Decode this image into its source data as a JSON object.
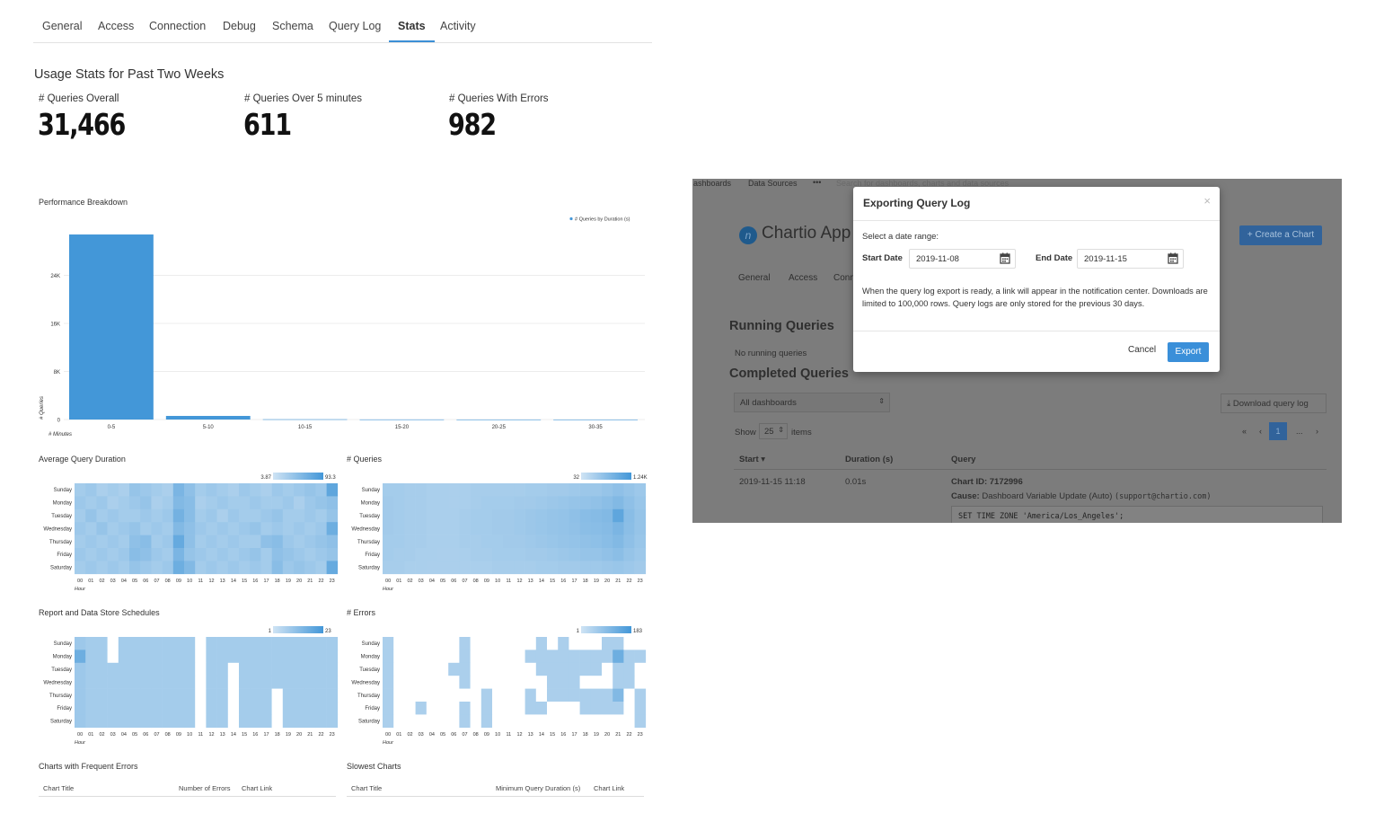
{
  "tabs": [
    {
      "label": "General"
    },
    {
      "label": "Access"
    },
    {
      "label": "Connection"
    },
    {
      "label": "Debug"
    },
    {
      "label": "Schema"
    },
    {
      "label": "Query Log"
    },
    {
      "label": "Stats",
      "active": true
    },
    {
      "label": "Activity"
    }
  ],
  "usage": {
    "title": "Usage Stats for Past Two Weeks",
    "stats": [
      {
        "label": "# Queries Overall",
        "value": "31,466"
      },
      {
        "label": "# Queries Over 5 minutes",
        "value": "611"
      },
      {
        "label": "# Queries With Errors",
        "value": "982"
      }
    ]
  },
  "chart_data": [
    {
      "type": "bar",
      "title": "Performance Breakdown",
      "xlabel": "# Minutes",
      "ylabel": "# Queries",
      "categories": [
        "0-5",
        "5-10",
        "10-15",
        "15-20",
        "20-25",
        "30-35"
      ],
      "series": [
        {
          "name": "# Queries by Duration (s)",
          "values": [
            30800,
            600,
            40,
            12,
            5,
            3
          ]
        }
      ],
      "y_ticks": [
        "0",
        "8K",
        "16K",
        "24K"
      ],
      "ylim": [
        0,
        32000
      ],
      "legend": "top-right",
      "grid": true,
      "color": "#4397d8"
    },
    {
      "type": "heatmap",
      "title": "Average Query Duration",
      "rows": [
        "Sunday",
        "Monday",
        "Tuesday",
        "Wednesday",
        "Thursday",
        "Friday",
        "Saturday"
      ],
      "cols": [
        "00",
        "01",
        "02",
        "03",
        "04",
        "05",
        "06",
        "07",
        "08",
        "09",
        "10",
        "11",
        "12",
        "13",
        "14",
        "15",
        "16",
        "17",
        "18",
        "19",
        "20",
        "21",
        "22",
        "23"
      ],
      "xlabel": "Hour",
      "range": [
        "3.87",
        "93.3"
      ],
      "values": [
        [
          30,
          35,
          25,
          30,
          25,
          40,
          35,
          30,
          25,
          60,
          45,
          30,
          35,
          30,
          25,
          35,
          30,
          25,
          35,
          30,
          35,
          40,
          35,
          80
        ],
        [
          35,
          30,
          35,
          25,
          30,
          35,
          40,
          25,
          30,
          55,
          50,
          25,
          30,
          35,
          30,
          30,
          35,
          30,
          30,
          35,
          25,
          35,
          40,
          45
        ],
        [
          30,
          40,
          30,
          35,
          30,
          30,
          35,
          30,
          35,
          65,
          50,
          30,
          35,
          25,
          35,
          30,
          30,
          35,
          40,
          30,
          30,
          35,
          30,
          40
        ],
        [
          35,
          30,
          40,
          30,
          35,
          40,
          30,
          35,
          30,
          55,
          45,
          35,
          30,
          35,
          30,
          35,
          40,
          30,
          35,
          30,
          35,
          30,
          35,
          70
        ],
        [
          30,
          35,
          30,
          35,
          30,
          45,
          50,
          30,
          35,
          75,
          45,
          30,
          35,
          30,
          35,
          30,
          30,
          45,
          50,
          35,
          30,
          35,
          40,
          45
        ],
        [
          35,
          30,
          35,
          30,
          35,
          50,
          45,
          35,
          30,
          60,
          40,
          35,
          30,
          35,
          30,
          35,
          40,
          30,
          45,
          40,
          35,
          30,
          35,
          40
        ],
        [
          30,
          35,
          30,
          35,
          30,
          40,
          35,
          30,
          35,
          70,
          55,
          30,
          35,
          30,
          35,
          30,
          35,
          30,
          50,
          35,
          40,
          35,
          30,
          75
        ]
      ],
      "color": "#4397d8"
    },
    {
      "type": "heatmap",
      "title": "# Queries",
      "rows": [
        "Sunday",
        "Monday",
        "Tuesday",
        "Wednesday",
        "Thursday",
        "Friday",
        "Saturday"
      ],
      "cols": [
        "00",
        "01",
        "02",
        "03",
        "04",
        "05",
        "06",
        "07",
        "08",
        "09",
        "10",
        "11",
        "12",
        "13",
        "14",
        "15",
        "16",
        "17",
        "18",
        "19",
        "20",
        "21",
        "22",
        "23"
      ],
      "xlabel": "Hour",
      "range": [
        "32",
        "1.24K"
      ],
      "values": [
        [
          30,
          30,
          28,
          28,
          26,
          26,
          25,
          26,
          28,
          28,
          28,
          28,
          28,
          30,
          30,
          32,
          32,
          34,
          36,
          36,
          40,
          45,
          40,
          35
        ],
        [
          32,
          30,
          28,
          28,
          26,
          26,
          25,
          26,
          28,
          30,
          30,
          30,
          32,
          32,
          34,
          36,
          38,
          40,
          42,
          44,
          48,
          55,
          45,
          38
        ],
        [
          32,
          30,
          28,
          28,
          26,
          26,
          26,
          28,
          30,
          30,
          32,
          32,
          34,
          36,
          38,
          40,
          42,
          45,
          50,
          52,
          55,
          80,
          50,
          40
        ],
        [
          32,
          30,
          28,
          28,
          26,
          26,
          26,
          28,
          30,
          30,
          32,
          32,
          34,
          36,
          38,
          40,
          42,
          44,
          48,
          50,
          52,
          60,
          48,
          40
        ],
        [
          30,
          30,
          28,
          28,
          26,
          26,
          26,
          28,
          28,
          30,
          30,
          32,
          32,
          34,
          36,
          38,
          40,
          42,
          44,
          46,
          50,
          55,
          45,
          38
        ],
        [
          30,
          28,
          28,
          26,
          26,
          25,
          25,
          26,
          28,
          28,
          30,
          30,
          30,
          32,
          32,
          34,
          36,
          38,
          40,
          40,
          44,
          48,
          40,
          35
        ],
        [
          28,
          28,
          26,
          26,
          25,
          25,
          25,
          25,
          26,
          26,
          28,
          28,
          28,
          28,
          30,
          30,
          32,
          32,
          34,
          34,
          36,
          38,
          35,
          32
        ]
      ],
      "color": "#4397d8"
    },
    {
      "type": "heatmap",
      "title": "Report and Data Store Schedules",
      "rows": [
        "Sunday",
        "Monday",
        "Tuesday",
        "Wednesday",
        "Thursday",
        "Friday",
        "Saturday"
      ],
      "cols": [
        "00",
        "01",
        "02",
        "03",
        "04",
        "05",
        "06",
        "07",
        "08",
        "09",
        "10",
        "11",
        "12",
        "13",
        "14",
        "15",
        "16",
        "17",
        "18",
        "19",
        "20",
        "21",
        "22",
        "23"
      ],
      "xlabel": "Hour",
      "range": [
        "1",
        "23"
      ],
      "values": [
        [
          35,
          30,
          30,
          0,
          30,
          30,
          30,
          30,
          30,
          30,
          30,
          0,
          30,
          30,
          30,
          30,
          30,
          30,
          30,
          30,
          30,
          30,
          30,
          30
        ],
        [
          70,
          30,
          30,
          0,
          30,
          30,
          30,
          30,
          30,
          30,
          30,
          0,
          30,
          30,
          30,
          30,
          30,
          30,
          30,
          30,
          30,
          30,
          30,
          30
        ],
        [
          35,
          30,
          30,
          30,
          30,
          30,
          30,
          30,
          30,
          30,
          30,
          0,
          30,
          30,
          0,
          30,
          30,
          30,
          30,
          30,
          30,
          30,
          30,
          30
        ],
        [
          35,
          30,
          30,
          30,
          30,
          30,
          30,
          30,
          30,
          30,
          30,
          0,
          30,
          30,
          0,
          30,
          30,
          30,
          30,
          30,
          30,
          30,
          30,
          30
        ],
        [
          35,
          30,
          30,
          30,
          30,
          30,
          30,
          30,
          30,
          30,
          30,
          0,
          30,
          30,
          0,
          30,
          30,
          30,
          0,
          30,
          30,
          30,
          30,
          30
        ],
        [
          35,
          30,
          30,
          30,
          30,
          30,
          30,
          30,
          30,
          30,
          30,
          0,
          30,
          30,
          0,
          30,
          30,
          30,
          0,
          30,
          30,
          30,
          30,
          30
        ],
        [
          35,
          30,
          30,
          30,
          30,
          30,
          30,
          30,
          30,
          30,
          30,
          0,
          30,
          30,
          0,
          30,
          30,
          30,
          0,
          30,
          30,
          30,
          30,
          30
        ]
      ],
      "color": "#4397d8"
    },
    {
      "type": "heatmap",
      "title": "# Errors",
      "rows": [
        "Sunday",
        "Monday",
        "Tuesday",
        "Wednesday",
        "Thursday",
        "Friday",
        "Saturday"
      ],
      "cols": [
        "00",
        "01",
        "02",
        "03",
        "04",
        "05",
        "06",
        "07",
        "08",
        "09",
        "10",
        "11",
        "12",
        "13",
        "14",
        "15",
        "16",
        "17",
        "18",
        "19",
        "20",
        "21",
        "22",
        "23"
      ],
      "xlabel": "Hour",
      "range": [
        "1",
        "183"
      ],
      "values": [
        [
          25,
          0,
          0,
          0,
          0,
          0,
          0,
          25,
          0,
          0,
          0,
          0,
          0,
          0,
          25,
          0,
          25,
          0,
          0,
          0,
          25,
          25,
          0,
          0
        ],
        [
          25,
          0,
          0,
          0,
          0,
          0,
          0,
          25,
          0,
          0,
          0,
          0,
          0,
          25,
          25,
          25,
          25,
          25,
          25,
          25,
          25,
          70,
          25,
          25
        ],
        [
          25,
          0,
          0,
          0,
          0,
          0,
          25,
          25,
          0,
          0,
          0,
          0,
          0,
          0,
          25,
          25,
          25,
          25,
          25,
          25,
          0,
          25,
          25,
          0
        ],
        [
          25,
          0,
          0,
          0,
          0,
          0,
          0,
          25,
          0,
          0,
          0,
          0,
          0,
          0,
          0,
          25,
          25,
          25,
          0,
          0,
          0,
          25,
          25,
          0
        ],
        [
          25,
          0,
          0,
          0,
          0,
          0,
          0,
          0,
          0,
          25,
          0,
          0,
          0,
          25,
          0,
          25,
          25,
          25,
          25,
          25,
          25,
          55,
          0,
          25
        ],
        [
          25,
          0,
          0,
          25,
          0,
          0,
          0,
          25,
          0,
          25,
          0,
          0,
          0,
          25,
          25,
          0,
          0,
          0,
          25,
          25,
          25,
          25,
          0,
          25
        ],
        [
          25,
          0,
          0,
          0,
          0,
          0,
          0,
          25,
          0,
          25,
          0,
          0,
          0,
          0,
          0,
          0,
          0,
          0,
          0,
          0,
          0,
          0,
          0,
          25
        ]
      ],
      "color": "#4397d8"
    }
  ],
  "tables": {
    "frequent_errors": {
      "title": "Charts with Frequent Errors",
      "headers": [
        "Chart Title",
        "Number of Errors",
        "Chart Link"
      ]
    },
    "slowest": {
      "title": "Slowest Charts",
      "headers": [
        "Chart Title",
        "Minimum Query Duration (s)",
        "Chart Link"
      ]
    }
  },
  "background_app": {
    "topbar": [
      "ashboards",
      "Data Sources",
      "•••",
      "Search for dashboards, charts and data sources"
    ],
    "app_name": "Chartio App",
    "create_button": "+ Create a Chart",
    "tabs": [
      "General",
      "Access",
      "Conn"
    ],
    "running_title": "Running Queries",
    "no_running": "No running queries",
    "completed_title": "Completed Queries",
    "dashboard_select": "All dashboards",
    "download_button": "Download query log",
    "show_label": "Show",
    "show_value": "25",
    "items_label": "items",
    "pager": [
      "«",
      "‹",
      "1",
      "...",
      "›"
    ],
    "columns": [
      "Start ▾",
      "Duration (s)",
      "Query"
    ],
    "row": {
      "start": "2019-11-15 11:18",
      "duration": "0.01s",
      "chart_id": "Chart ID: 7172996",
      "cause_label": "Cause:",
      "cause": "Dashboard Variable Update (Auto)",
      "email": "(support@chartio.com)",
      "sql": "SET TIME ZONE 'America/Los_Angeles';"
    }
  },
  "modal": {
    "title": "Exporting Query Log",
    "close": "×",
    "prompt": "Select a date range:",
    "start_label": "Start Date",
    "start_value": "2019-11-08",
    "end_label": "End Date",
    "end_value": "2019-11-15",
    "info": "When the query log export is ready, a link will appear in the notification center. Downloads are limited to 100,000 rows. Query logs are only stored for the previous 30 days.",
    "cancel": "Cancel",
    "export": "Export"
  }
}
